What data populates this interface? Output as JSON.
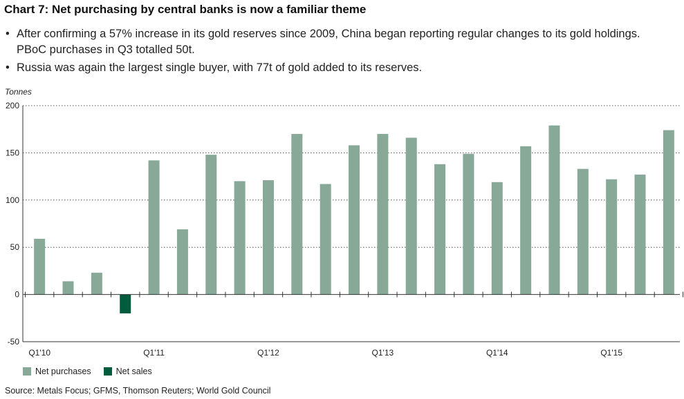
{
  "title": "Chart 7: Net purchasing by central banks is now a familiar theme",
  "bullets": [
    "After confirming a 57% increase in its gold reserves since 2009, China began reporting regular changes to its gold holdings. PBoC purchases in Q3 totalled 50t.",
    "Russia was again the largest single buyer, with 77t of gold added to its reserves."
  ],
  "source": "Source: Metals Focus; GFMS, Thomson Reuters; World Gold Council",
  "colors": {
    "net_purchases": "#88a898",
    "net_sales": "#005c3c",
    "axis": "#333333"
  },
  "chart_data": {
    "type": "bar",
    "ylabel": "Tonnes",
    "ylim": [
      -50,
      200
    ],
    "yticks": [
      -50,
      0,
      50,
      100,
      150,
      200
    ],
    "grid": "dotted horizontal",
    "legend_position": "bottom-left",
    "x_tick_labels": [
      "Q1'10",
      "Q1'11",
      "Q1'12",
      "Q1'13",
      "Q1'14",
      "Q1'15"
    ],
    "categories": [
      "Q1'10",
      "Q2'10",
      "Q3'10",
      "Q4'10",
      "Q1'11",
      "Q2'11",
      "Q3'11",
      "Q4'11",
      "Q1'12",
      "Q2'12",
      "Q3'12",
      "Q4'12",
      "Q1'13",
      "Q2'13",
      "Q3'13",
      "Q4'13",
      "Q1'14",
      "Q2'14",
      "Q3'14",
      "Q4'14",
      "Q1'15",
      "Q2'15",
      "Q3'15"
    ],
    "series": [
      {
        "name": "Net purchases",
        "values": [
          59,
          14,
          23,
          null,
          142,
          69,
          148,
          120,
          121,
          170,
          117,
          158,
          170,
          166,
          138,
          149,
          119,
          157,
          179,
          133,
          122,
          127,
          174
        ]
      },
      {
        "name": "Net sales",
        "values": [
          null,
          null,
          null,
          -20,
          null,
          null,
          null,
          null,
          null,
          null,
          null,
          null,
          null,
          null,
          null,
          null,
          null,
          null,
          null,
          null,
          null,
          null,
          null
        ]
      }
    ]
  }
}
